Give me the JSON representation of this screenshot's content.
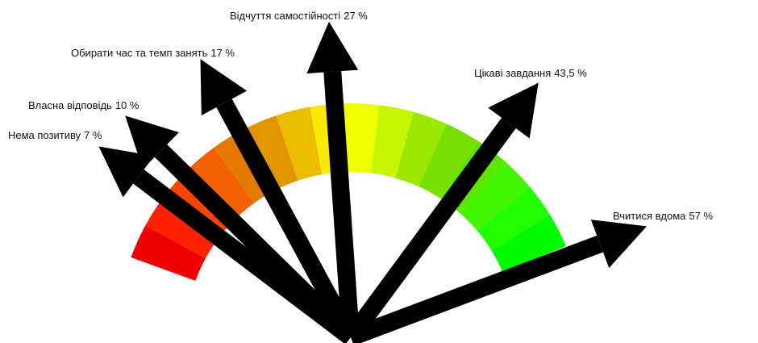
{
  "chart_data": {
    "type": "gauge",
    "categories": [
      "Нема позитиву",
      "Власна відповідь",
      "Обирати час та темп занять",
      "Відчуття самостійності",
      "Цікаві завдання",
      "Вчитися вдома"
    ],
    "values": [
      7,
      10,
      17,
      27,
      43.5,
      57
    ],
    "value_labels": [
      "7 %",
      "10 %",
      "17 %",
      "27 %",
      "43,5 %",
      "57 %"
    ],
    "color": "#000000",
    "ylim": [
      0,
      56
    ]
  }
}
